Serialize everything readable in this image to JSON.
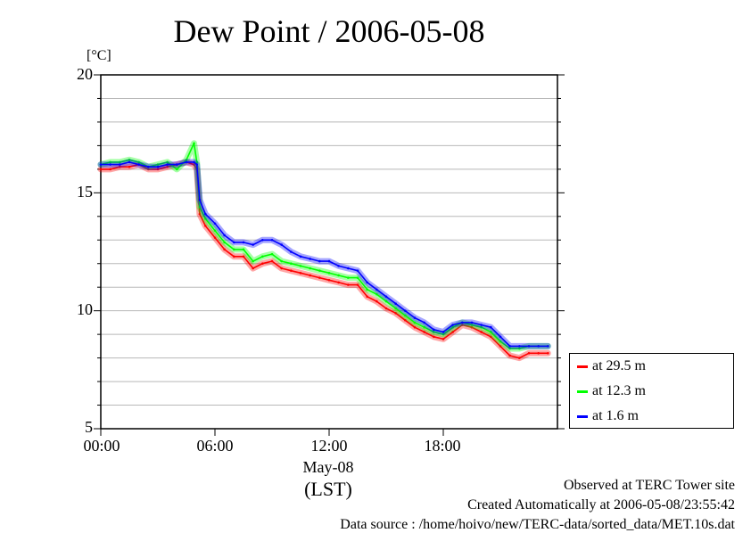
{
  "chart_data": {
    "type": "line",
    "title": "Dew Point / 2006-05-08",
    "ylabel": "[°C]",
    "xlabel": "(LST)",
    "x_date_label": "May-08",
    "ylim": [
      5,
      20
    ],
    "xlim": [
      0,
      24
    ],
    "y_ticks": [
      "5",
      "10",
      "15",
      "20"
    ],
    "x_ticks": [
      "00:00",
      "06:00",
      "12:00",
      "18:00"
    ],
    "x_tick_values": [
      0,
      6,
      12,
      18
    ],
    "grid": true,
    "legend_position": "right-bottom",
    "x": [
      0.0,
      0.5,
      1.0,
      1.5,
      2.0,
      2.5,
      3.0,
      3.5,
      4.0,
      4.5,
      4.9,
      5.05,
      5.2,
      5.5,
      6.0,
      6.5,
      7.0,
      7.5,
      8.0,
      8.5,
      9.0,
      9.5,
      10.0,
      10.5,
      11.0,
      11.5,
      12.0,
      12.5,
      13.0,
      13.5,
      14.0,
      14.5,
      15.0,
      15.5,
      16.0,
      16.5,
      17.0,
      17.5,
      18.0,
      18.5,
      19.0,
      19.5,
      20.0,
      20.5,
      21.0,
      21.5,
      22.0,
      22.5,
      23.0,
      23.5
    ],
    "series": [
      {
        "name": "at 29.5 m",
        "color": "#ff0000",
        "values": [
          16.0,
          16.0,
          16.1,
          16.1,
          16.2,
          16.0,
          16.0,
          16.1,
          16.2,
          16.3,
          16.2,
          16.0,
          14.1,
          13.6,
          13.1,
          12.6,
          12.3,
          12.3,
          11.8,
          12.0,
          12.1,
          11.8,
          11.7,
          11.6,
          11.5,
          11.4,
          11.3,
          11.2,
          11.1,
          11.1,
          10.6,
          10.4,
          10.1,
          9.9,
          9.6,
          9.3,
          9.1,
          8.9,
          8.8,
          9.1,
          9.4,
          9.3,
          9.1,
          8.9,
          8.5,
          8.1,
          8.0,
          8.2,
          8.2,
          8.2
        ]
      },
      {
        "name": "at 12.3 m",
        "color": "#00ff00",
        "values": [
          16.2,
          16.3,
          16.3,
          16.4,
          16.3,
          16.1,
          16.2,
          16.3,
          16.0,
          16.4,
          17.1,
          16.3,
          14.4,
          13.9,
          13.4,
          12.9,
          12.6,
          12.6,
          12.1,
          12.3,
          12.4,
          12.1,
          12.0,
          11.9,
          11.8,
          11.7,
          11.6,
          11.5,
          11.4,
          11.4,
          10.9,
          10.7,
          10.4,
          10.1,
          9.8,
          9.5,
          9.3,
          9.1,
          9.0,
          9.3,
          9.5,
          9.4,
          9.3,
          9.1,
          8.7,
          8.4,
          8.4,
          8.5,
          8.5,
          8.5
        ]
      },
      {
        "name": "at 1.6 m",
        "color": "#0000ff",
        "values": [
          16.2,
          16.2,
          16.2,
          16.3,
          16.2,
          16.1,
          16.1,
          16.2,
          16.2,
          16.3,
          16.3,
          16.2,
          14.7,
          14.1,
          13.7,
          13.2,
          12.9,
          12.9,
          12.8,
          13.0,
          13.0,
          12.8,
          12.5,
          12.3,
          12.2,
          12.1,
          12.1,
          11.9,
          11.8,
          11.7,
          11.2,
          10.9,
          10.6,
          10.3,
          10.0,
          9.7,
          9.5,
          9.2,
          9.1,
          9.4,
          9.5,
          9.5,
          9.4,
          9.3,
          8.9,
          8.5,
          8.5,
          8.5,
          8.5,
          8.5
        ]
      }
    ]
  },
  "footer": {
    "line1": "Observed at TERC Tower site",
    "line2": "Created Automatically at 2006-05-08/23:55:42",
    "line3": "Data source : /home/hoivo/new/TERC-data/sorted_data/MET.10s.dat"
  }
}
